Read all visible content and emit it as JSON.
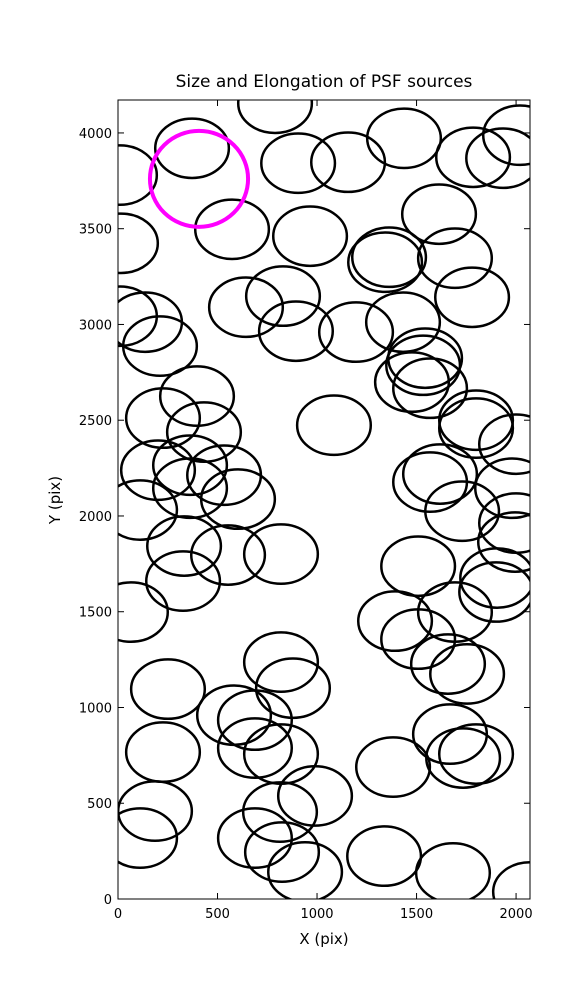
{
  "chart_data": {
    "type": "scatter",
    "title": "Size and Elongation of PSF sources",
    "xlabel": "X (pix)",
    "ylabel": "Y (pix)",
    "xlim": [
      0,
      2070
    ],
    "ylim": [
      0,
      4172
    ],
    "xticks": [
      0,
      500,
      1000,
      1500,
      2000
    ],
    "yticks": [
      0,
      500,
      1000,
      1500,
      2000,
      2500,
      3000,
      3500,
      4000
    ],
    "series": [
      {
        "color": "#000000",
        "width": 370,
        "height": 310,
        "x": [
          372,
          10,
          789,
          905,
          1156,
          1437,
          1784,
          1935,
          2020,
          573,
          965,
          1613,
          1693,
          1362,
          1342,
          1779,
          15,
          643,
          829,
          894,
          1196,
          1432,
          10,
          136,
          211,
          397,
          226,
          432,
          1085,
          1543,
          1533,
          1477,
          1568,
          1799,
          1799,
          2000,
          362,
          201,
          362,
          533,
          603,
          111,
          1618,
          1568,
          1729,
          1980,
          2000,
          1995,
          332,
          553,
          819,
          1508,
          327,
          1905,
          1900,
          65,
          1693,
          1392,
          1508,
          1658,
          1754,
          819,
          879,
          251,
          583,
          688,
          688,
          819,
          226,
          1668,
          1382,
          1734,
          1799,
          990,
          814,
          186,
          688,
          824,
          940,
          111,
          1337,
          1683,
          2070
        ],
        "y": [
          3920,
          3780,
          4155,
          3842,
          3847,
          3972,
          3873,
          3868,
          3988,
          3497,
          3461,
          3576,
          3346,
          3351,
          3325,
          3142,
          3424,
          3090,
          3148,
          2965,
          2960,
          3012,
          3043,
          3012,
          2887,
          2626,
          2511,
          2438,
          2474,
          2824,
          2787,
          2699,
          2667,
          2500,
          2459,
          2375,
          2265,
          2239,
          2145,
          2213,
          2088,
          2031,
          2219,
          2177,
          2025,
          2145,
          1963,
          1864,
          1843,
          1796,
          1801,
          1738,
          1660,
          1676,
          1603,
          1498,
          1498,
          1451,
          1357,
          1227,
          1175,
          1237,
          1101,
          1096,
          960,
          934,
          788,
          757,
          767,
          861,
          689,
          736,
          757,
          538,
          454,
          459,
          318,
          245,
          141,
          318,
          224,
          136,
          37
        ]
      },
      {
        "color": "#ff00ff",
        "width": 493,
        "height": 501,
        "x": [
          407
        ],
        "y": [
          3760
        ]
      }
    ]
  }
}
